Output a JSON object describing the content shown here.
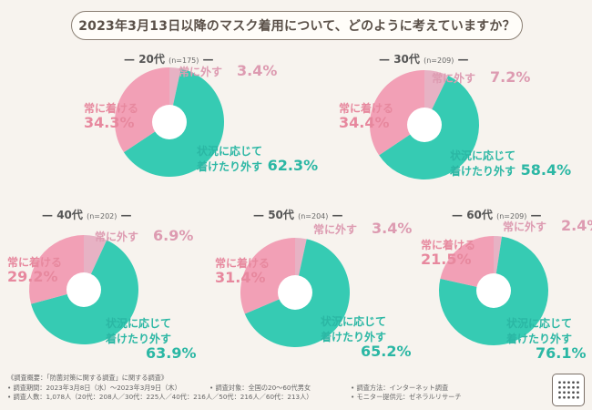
{
  "title": "2023年3月13日以降のマスク着用について、どのように考えていますか？",
  "colors": {
    "always_wear": "#f2a0b6",
    "situational": "#36cbb3",
    "always_remove": "#e7b2c4",
    "hole": "#ffffff"
  },
  "chart_data": [
    {
      "type": "pie",
      "age": "20代",
      "n": "(n=175)",
      "slices": [
        {
          "label": "常に外す",
          "value": 3.4,
          "value_text": "3.4%"
        },
        {
          "label": "状況に応じて着けたり外す",
          "value": 62.3,
          "value_text": "62.3%"
        },
        {
          "label": "常に着ける",
          "value": 34.3,
          "value_text": "34.3%"
        }
      ]
    },
    {
      "type": "pie",
      "age": "30代",
      "n": "(n=209)",
      "slices": [
        {
          "label": "常に外す",
          "value": 7.2,
          "value_text": "7.2%"
        },
        {
          "label": "状況に応じて着けたり外す",
          "value": 58.4,
          "value_text": "58.4%"
        },
        {
          "label": "常に着ける",
          "value": 34.4,
          "value_text": "34.4%"
        }
      ]
    },
    {
      "type": "pie",
      "age": "40代",
      "n": "(n=202)",
      "slices": [
        {
          "label": "常に外す",
          "value": 6.9,
          "value_text": "6.9%"
        },
        {
          "label": "状況に応じて着けたり外す",
          "value": 63.9,
          "value_text": "63.9%"
        },
        {
          "label": "常に着ける",
          "value": 29.2,
          "value_text": "29.2%"
        }
      ]
    },
    {
      "type": "pie",
      "age": "50代",
      "n": "(n=204)",
      "slices": [
        {
          "label": "常に外す",
          "value": 3.4,
          "value_text": "3.4%"
        },
        {
          "label": "状況に応じて着けたり外す",
          "value": 65.2,
          "value_text": "65.2%"
        },
        {
          "label": "常に着ける",
          "value": 31.4,
          "value_text": "31.4%"
        }
      ]
    },
    {
      "type": "pie",
      "age": "60代",
      "n": "(n=209)",
      "slices": [
        {
          "label": "常に外す",
          "value": 2.4,
          "value_text": "2.4%"
        },
        {
          "label": "状況に応じて着けたり外す",
          "value": 76.1,
          "value_text": "76.1%"
        },
        {
          "label": "常に着ける",
          "value": 21.5,
          "value_text": "21.5%"
        }
      ]
    }
  ],
  "labels": {
    "remove": "常に外す",
    "wear": "常に着ける",
    "situational_line1": "状況に応じて",
    "situational_line2": "着けたり外す"
  },
  "footer": {
    "summary": "《調査概要：「防菌対策に関する調査」に関する調査》",
    "period": "• 調査期間：2023年3月8日（水）～2023年3月9日（木）",
    "target": "• 調査対象：全国の20～60代男女",
    "method": "• 調査方法：インターネット調査",
    "count": "• 調査人数：1,078人（20代：208人／30代：225人／40代：216人／50代：216人／60代：213人）",
    "provider": "• モニター提供元：ゼネラルリサーチ"
  }
}
